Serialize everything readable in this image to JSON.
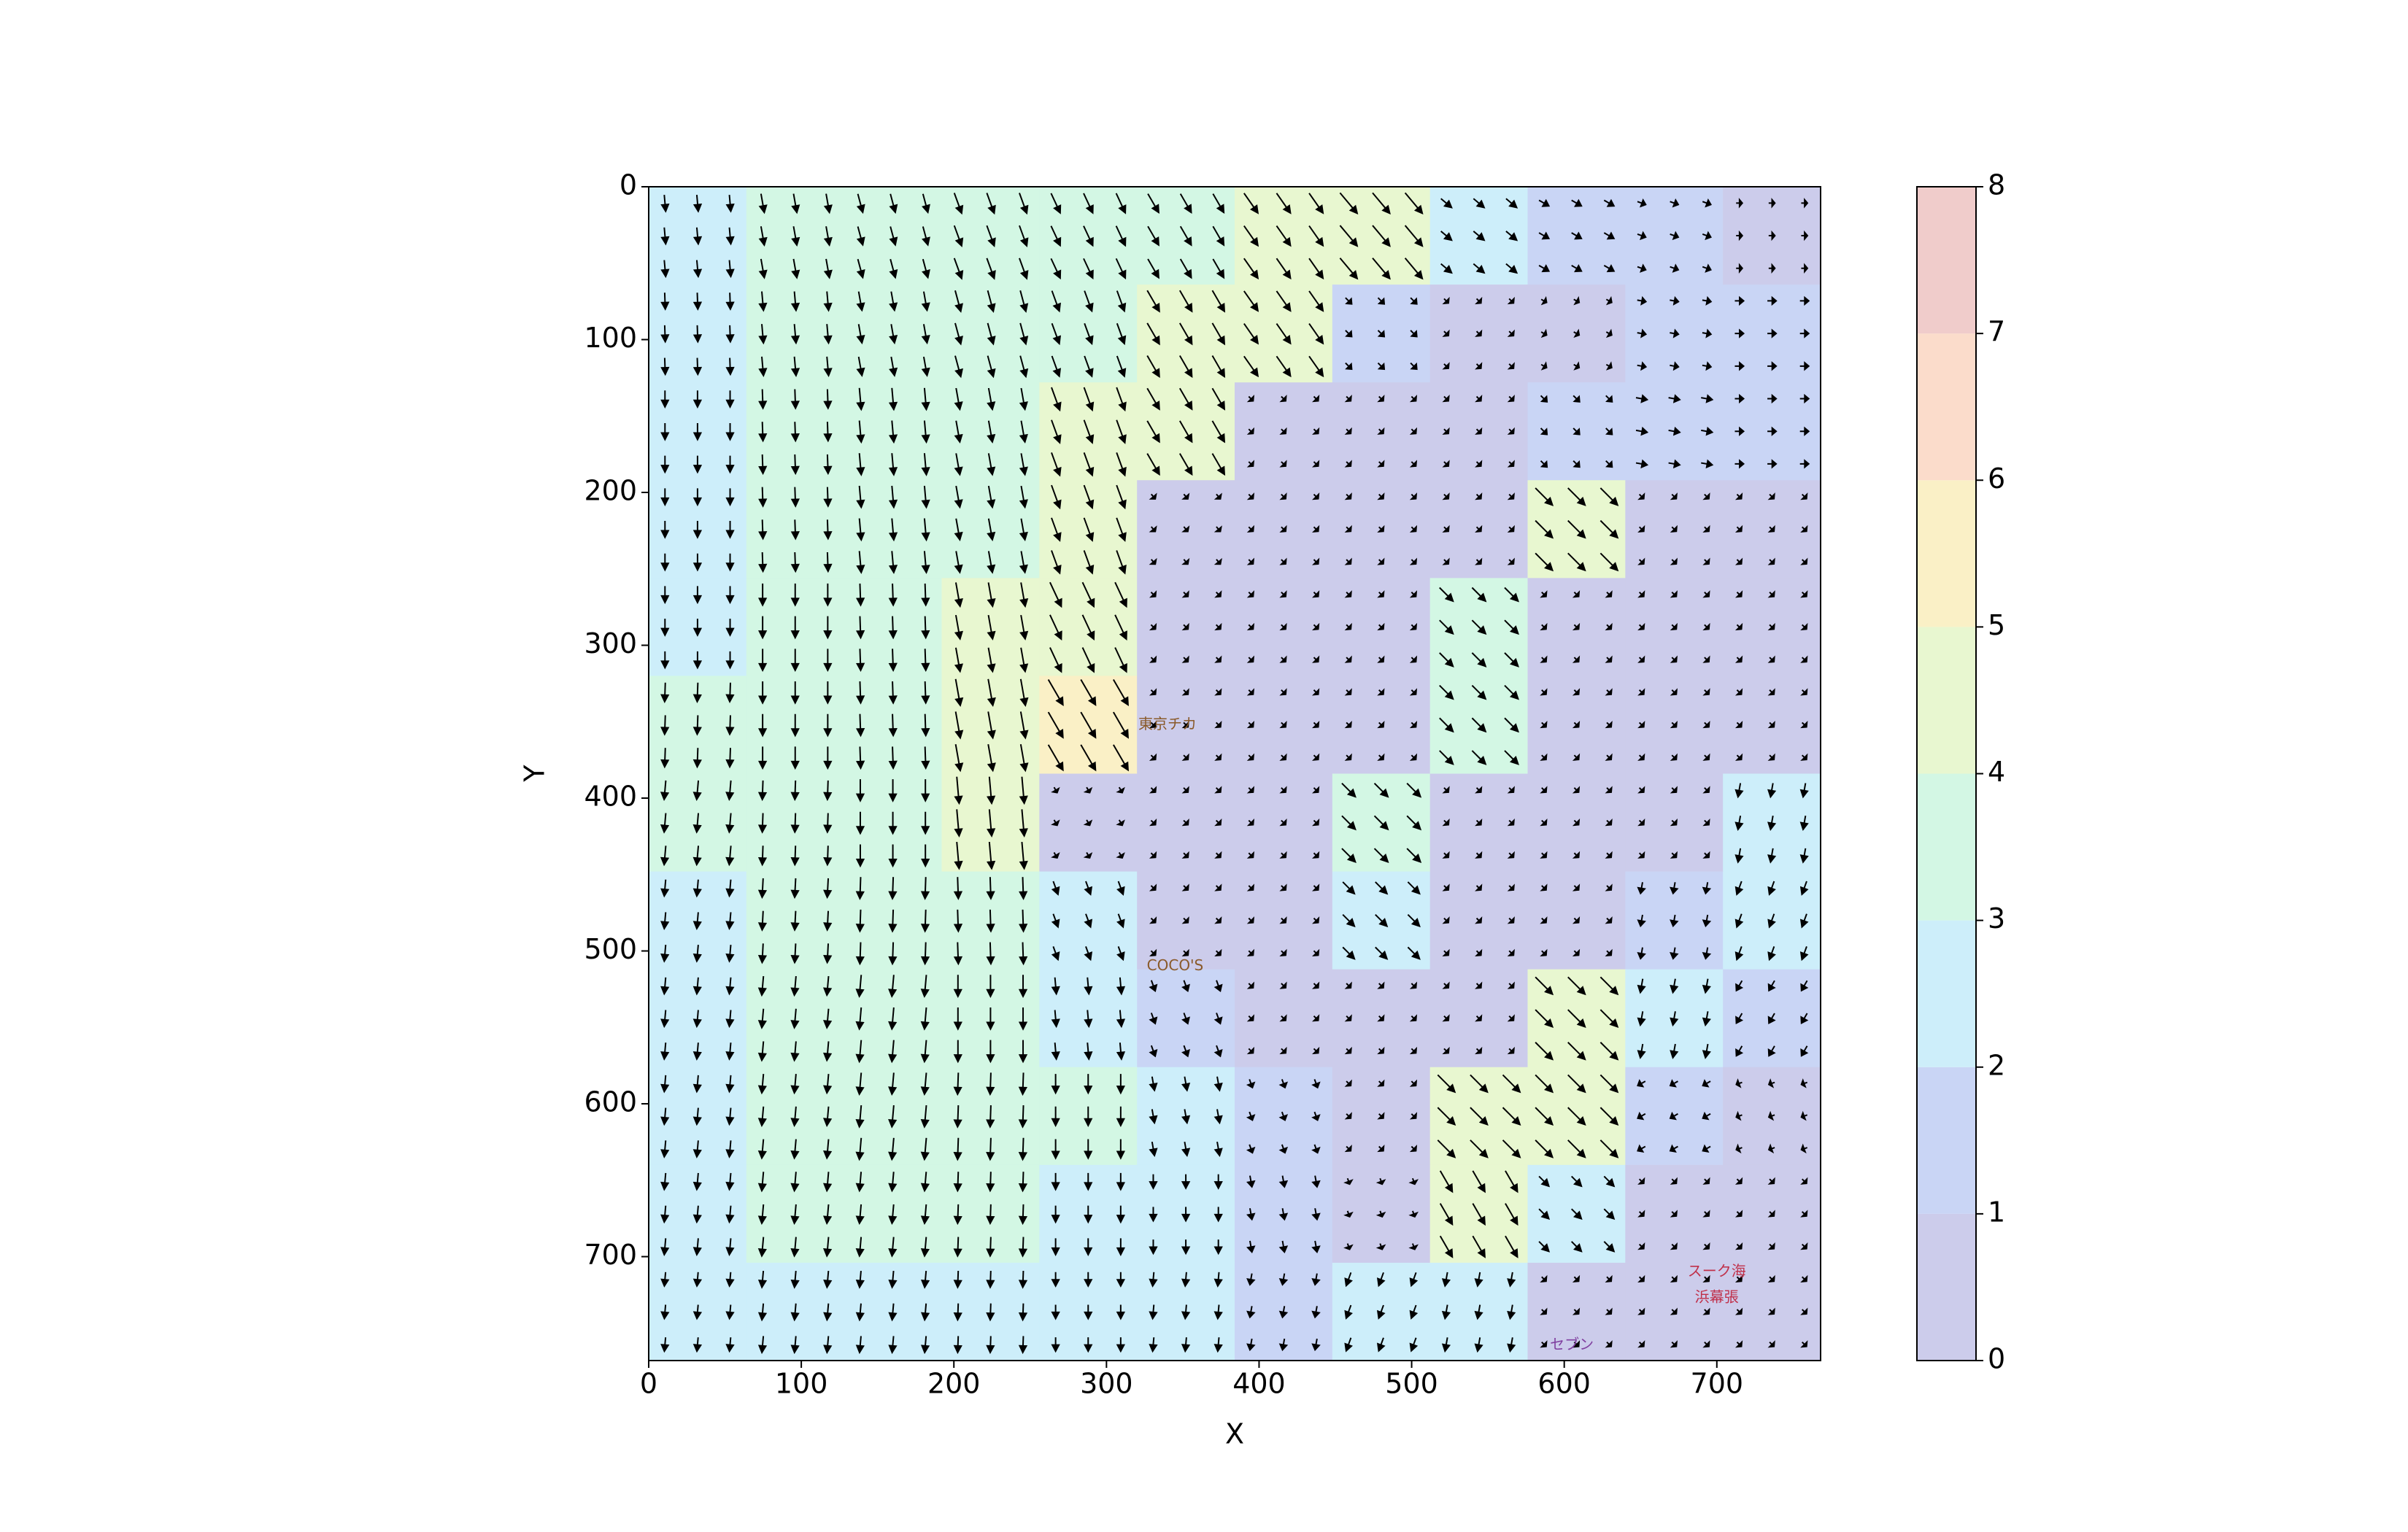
{
  "chart_data": {
    "type": "contour-quiver",
    "xlabel": "X",
    "ylabel": "Y",
    "xlim": [
      0,
      768
    ],
    "ylim": [
      768,
      0
    ],
    "xticks": [
      0,
      100,
      200,
      300,
      400,
      500,
      600,
      700
    ],
    "yticks": [
      0,
      100,
      200,
      300,
      400,
      500,
      600,
      700
    ],
    "colorbar_ticks": [
      0,
      1,
      2,
      3,
      4,
      5,
      6,
      7,
      8
    ],
    "level_colors": [
      "#cccceb",
      "#c9d5f5",
      "#cdeefa",
      "#d3f7e4",
      "#e8f7d0",
      "#faf0c6",
      "#fbdccb",
      "#f0cccb"
    ],
    "grid_x": [
      32,
      96,
      160,
      224,
      288,
      352,
      416,
      480,
      544,
      608,
      672,
      736
    ],
    "grid_y": [
      32,
      96,
      160,
      224,
      288,
      352,
      416,
      480,
      544,
      608,
      672,
      736
    ],
    "field": [
      [
        2.5,
        3,
        3,
        3.5,
        3.5,
        3.5,
        4,
        4.5,
        2,
        1.5,
        1,
        0.5
      ],
      [
        2.5,
        3,
        3,
        3.5,
        3.5,
        4,
        4,
        1,
        0.5,
        0.5,
        1,
        1
      ],
      [
        2.5,
        3,
        3.5,
        3.5,
        4,
        4,
        0.5,
        0.5,
        0.5,
        1,
        1.5,
        1
      ],
      [
        2.5,
        3,
        3.5,
        3.5,
        4,
        0.5,
        0.5,
        0.5,
        0.5,
        4,
        0.5,
        0.5
      ],
      [
        2.5,
        3.5,
        3.5,
        4,
        4.5,
        0.5,
        0.5,
        0.5,
        3,
        0.5,
        0.5,
        0.5
      ],
      [
        3,
        3.5,
        3.5,
        4.5,
        5,
        0.5,
        0.5,
        0.5,
        3,
        0.5,
        0.5,
        0.5
      ],
      [
        3,
        3,
        3.5,
        4.5,
        0.5,
        0.5,
        0.5,
        3,
        0.5,
        0.5,
        0.5,
        2
      ],
      [
        2.5,
        3,
        3.5,
        3.5,
        2,
        0.5,
        0.5,
        2.5,
        0.5,
        0.5,
        1.5,
        2
      ],
      [
        2.5,
        3,
        3.5,
        3.5,
        2.5,
        1.5,
        0.5,
        0.5,
        0.5,
        4,
        2,
        1.5
      ],
      [
        2.5,
        3,
        3.5,
        3.5,
        3,
        2,
        1,
        0.5,
        4,
        4,
        1,
        0.5
      ],
      [
        2.5,
        3,
        3,
        3,
        2.5,
        2,
        1.5,
        0.5,
        4,
        2,
        0.5,
        0.5
      ],
      [
        2,
        2.5,
        2.5,
        2.5,
        2,
        2,
        1.5,
        2,
        2,
        0.5,
        0.5,
        0.5
      ]
    ],
    "angle": [
      [
        85,
        80,
        75,
        70,
        65,
        60,
        55,
        50,
        40,
        30,
        20,
        0
      ],
      [
        88,
        85,
        80,
        75,
        70,
        60,
        55,
        45,
        45,
        30,
        10,
        0
      ],
      [
        90,
        88,
        85,
        80,
        70,
        60,
        45,
        45,
        45,
        45,
        10,
        0
      ],
      [
        90,
        88,
        85,
        80,
        70,
        50,
        45,
        45,
        45,
        45,
        45,
        45
      ],
      [
        90,
        90,
        88,
        80,
        65,
        45,
        45,
        45,
        45,
        45,
        45,
        45
      ],
      [
        92,
        90,
        88,
        80,
        60,
        45,
        45,
        45,
        45,
        45,
        45,
        45
      ],
      [
        95,
        92,
        90,
        85,
        60,
        45,
        45,
        45,
        45,
        45,
        45,
        100
      ],
      [
        95,
        93,
        92,
        88,
        70,
        45,
        45,
        45,
        45,
        45,
        100,
        110
      ],
      [
        95,
        95,
        95,
        90,
        85,
        70,
        45,
        45,
        45,
        45,
        100,
        120
      ],
      [
        95,
        95,
        95,
        92,
        90,
        80,
        70,
        45,
        45,
        45,
        150,
        160
      ],
      [
        95,
        95,
        95,
        92,
        90,
        90,
        80,
        70,
        60,
        45,
        45,
        45
      ],
      [
        95,
        95,
        95,
        92,
        90,
        95,
        100,
        110,
        100,
        45,
        45,
        45
      ]
    ],
    "annotations": [
      "東京チカ",
      "COCO'S",
      "スーク海",
      "浜幕張",
      "セブン"
    ]
  }
}
